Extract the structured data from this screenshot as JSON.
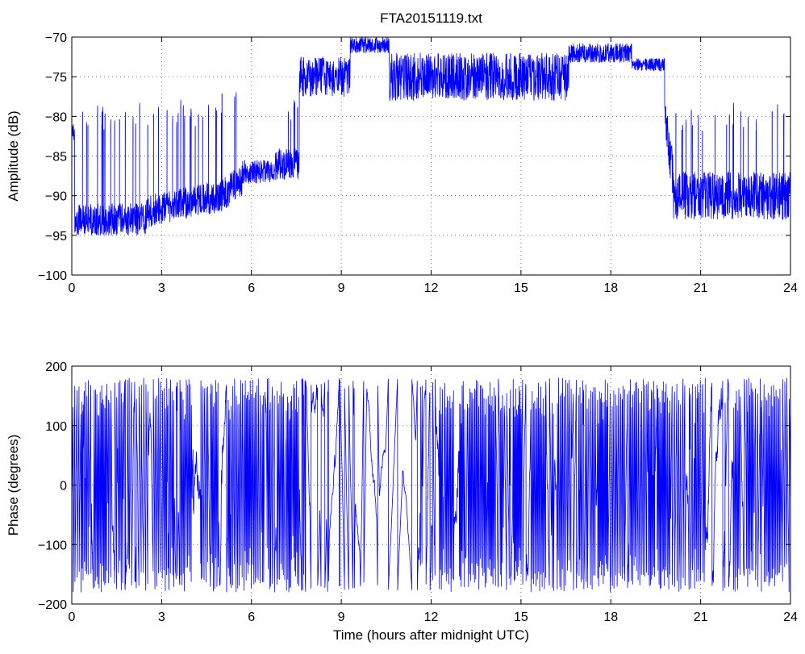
{
  "figure": {
    "title": "FTA20151119.txt"
  },
  "chart_data": [
    {
      "type": "line",
      "name": "amplitude-panel",
      "title": "FTA20151119.txt",
      "xlabel": "",
      "ylabel": "Amplitude (dB)",
      "xlim": [
        0,
        24
      ],
      "ylim": [
        -100,
        -70
      ],
      "xticks": [
        0,
        3,
        6,
        9,
        12,
        15,
        18,
        21,
        24
      ],
      "yticks": [
        -100,
        -95,
        -90,
        -85,
        -80,
        -75,
        -70
      ],
      "grid": true,
      "color": "#0000ff",
      "segments": [
        {
          "x0": 0.0,
          "x1": 0.1,
          "base": -82,
          "noise": 1.0
        },
        {
          "x0": 0.1,
          "x1": 2.5,
          "base": -93,
          "noise": 2.0,
          "spikes_to": -81
        },
        {
          "x0": 2.5,
          "x1": 5.0,
          "base": -92,
          "base_end": -90,
          "noise": 2.0,
          "spikes_to": -81
        },
        {
          "x0": 5.0,
          "x1": 5.7,
          "base": -90,
          "base_end": -88,
          "noise": 2.0,
          "spikes_to": -78
        },
        {
          "x0": 5.7,
          "x1": 6.8,
          "base": -87,
          "noise": 1.5
        },
        {
          "x0": 6.8,
          "x1": 7.6,
          "base": -86,
          "noise": 2.0,
          "spikes_to": -80
        },
        {
          "x0": 7.6,
          "x1": 9.3,
          "base": -75,
          "noise": 2.5
        },
        {
          "x0": 9.3,
          "x1": 10.6,
          "base": -71,
          "noise": 1.0
        },
        {
          "x0": 10.6,
          "x1": 16.6,
          "base": -75,
          "noise": 3.0
        },
        {
          "x0": 16.6,
          "x1": 18.7,
          "base": -72,
          "noise": 1.2
        },
        {
          "x0": 18.7,
          "x1": 19.8,
          "base": -73.5,
          "noise": 0.8
        },
        {
          "x0": 19.8,
          "x1": 20.1,
          "base": -80,
          "base_end": -88,
          "noise": 3.0
        },
        {
          "x0": 20.1,
          "x1": 24.0,
          "base": -90,
          "noise": 3.0,
          "spikes_to": -81
        }
      ]
    },
    {
      "type": "line",
      "name": "phase-panel",
      "title": "",
      "xlabel": "Time (hours after midnight UTC)",
      "ylabel": "Phase (degrees)",
      "xlim": [
        0,
        24
      ],
      "ylim": [
        -200,
        200
      ],
      "xticks": [
        0,
        3,
        6,
        9,
        12,
        15,
        18,
        21,
        24
      ],
      "yticks": [
        -200,
        -100,
        0,
        100,
        200
      ],
      "grid": true,
      "color": "#0000ff",
      "wrap_range": [
        -180,
        180
      ],
      "segments": [
        {
          "x0": 0.0,
          "x1": 7.8,
          "activity": "high"
        },
        {
          "x0": 7.8,
          "x1": 10.4,
          "activity": "medium"
        },
        {
          "x0": 10.4,
          "x1": 11.6,
          "activity": "low"
        },
        {
          "x0": 11.6,
          "x1": 24.0,
          "activity": "high"
        }
      ]
    }
  ]
}
